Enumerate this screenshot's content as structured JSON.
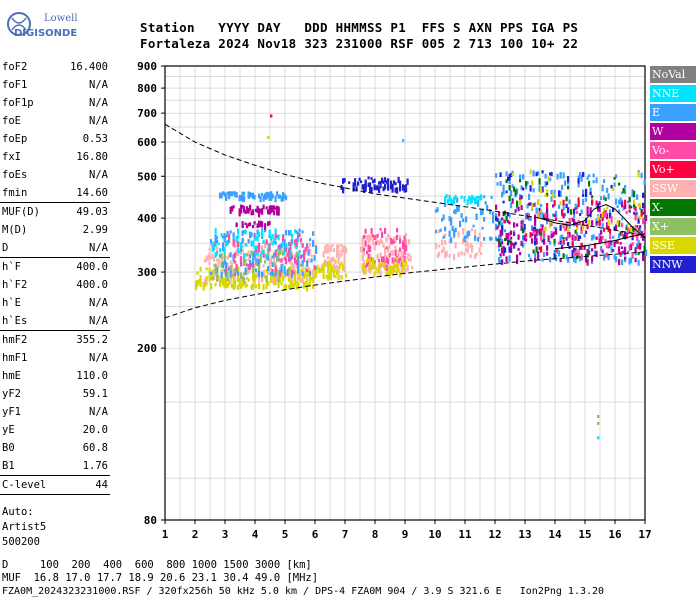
{
  "logo": {
    "line1": "Lowell",
    "line2": "DIGISONDE"
  },
  "header": {
    "labels": "Station   YYYY DAY   DDD HHMMSS P1  FFS S AXN PPS IGA PS",
    "values": "Fortaleza 2024 Nov18 323 231000 RSF 005 2 713 100 10+ 22"
  },
  "params": [
    [
      {
        "label": "foF2",
        "value": "16.400"
      },
      {
        "label": "foF1",
        "value": "N/A"
      },
      {
        "label": "foF1p",
        "value": "N/A"
      },
      {
        "label": "foE",
        "value": "N/A"
      },
      {
        "label": "foEp",
        "value": "0.53"
      },
      {
        "label": "fxI",
        "value": "16.80"
      },
      {
        "label": "foEs",
        "value": "N/A"
      },
      {
        "label": "fmin",
        "value": "14.60"
      }
    ],
    [
      {
        "label": "MUF(D)",
        "value": "49.03"
      },
      {
        "label": "M(D)",
        "value": "2.99"
      },
      {
        "label": "D",
        "value": "N/A"
      }
    ],
    [
      {
        "label": "h`F",
        "value": "400.0"
      },
      {
        "label": "h`F2",
        "value": "400.0"
      },
      {
        "label": "h`E",
        "value": "N/A"
      },
      {
        "label": "h`Es",
        "value": "N/A"
      }
    ],
    [
      {
        "label": "hmF2",
        "value": "355.2"
      },
      {
        "label": "hmF1",
        "value": "N/A"
      },
      {
        "label": "hmE",
        "value": "110.0"
      },
      {
        "label": "yF2",
        "value": "59.1"
      },
      {
        "label": "yF1",
        "value": "N/A"
      },
      {
        "label": "yE",
        "value": "20.0"
      },
      {
        "label": "B0",
        "value": "60.8"
      },
      {
        "label": "B1",
        "value": "1.76"
      }
    ],
    [
      {
        "label": "C-level",
        "value": "44"
      }
    ]
  ],
  "autoscaling": [
    "Auto:",
    "Artist5",
    "500200"
  ],
  "footer": {
    "d_row": "D     100  200  400  600  800 1000 1500 3000 [km]",
    "muf_row": "MUF  16.8 17.0 17.7 18.9 20.6 23.1 30.4 49.0 [MHz]",
    "file_row": "FZA0M_2024323231000.RSF / 320fx256h 50 kHz 5.0 km / DPS-4 FZA0M 904 / 3.9 S 321.6 E   Ion2Png 1.3.20"
  },
  "legend": [
    {
      "label": "NoVal",
      "color": "#808080"
    },
    {
      "label": "NNE",
      "color": "#00e5ff"
    },
    {
      "label": "E",
      "color": "#3aa0ff"
    },
    {
      "label": "W",
      "color": "#b000a0"
    },
    {
      "label": "Vo-",
      "color": "#ff4aa8"
    },
    {
      "label": "Vo+",
      "color": "#ff0040"
    },
    {
      "label": "SSW",
      "color": "#ffb0b0"
    },
    {
      "label": "X-",
      "color": "#007800"
    },
    {
      "label": "X+",
      "color": "#8cc060"
    },
    {
      "label": "SSE",
      "color": "#d8d800"
    },
    {
      "label": "NNW",
      "color": "#2020d0"
    }
  ],
  "chart_data": {
    "type": "scatter",
    "xlim": [
      1,
      17
    ],
    "ylim": [
      80,
      900
    ],
    "y_scale": "log",
    "x_ticks": [
      1,
      2,
      3,
      4,
      5,
      6,
      7,
      8,
      9,
      10,
      11,
      12,
      13,
      14,
      15,
      16,
      17
    ],
    "y_ticks": [
      80,
      200,
      300,
      400,
      500,
      600,
      700,
      800,
      900
    ],
    "grid": true,
    "legend_position": "right",
    "clusters": [
      {
        "series": "SSE",
        "x": [
          2.0,
          6.0
        ],
        "y": [
          280,
          310
        ],
        "n": 220
      },
      {
        "series": "SSW",
        "x": [
          2.3,
          6.0
        ],
        "y": [
          290,
          360
        ],
        "n": 180
      },
      {
        "series": "E",
        "x": [
          2.5,
          6.0
        ],
        "y": [
          300,
          380
        ],
        "n": 160
      },
      {
        "series": "NNE",
        "x": [
          2.5,
          5.5
        ],
        "y": [
          330,
          380
        ],
        "n": 70
      },
      {
        "series": "Vo-",
        "x": [
          3.0,
          6.0
        ],
        "y": [
          300,
          370
        ],
        "n": 60
      },
      {
        "series": "X+",
        "x": [
          2.5,
          5.5
        ],
        "y": [
          290,
          340
        ],
        "n": 40
      },
      {
        "series": "E",
        "x": [
          2.8,
          5.0
        ],
        "y": [
          450,
          462
        ],
        "n": 70
      },
      {
        "series": "W",
        "x": [
          3.0,
          4.8
        ],
        "y": [
          415,
          430
        ],
        "n": 55
      },
      {
        "series": "W",
        "x": [
          3.2,
          4.5
        ],
        "y": [
          385,
          395
        ],
        "n": 20
      },
      {
        "series": "SSW",
        "x": [
          6.2,
          7.0
        ],
        "y": [
          305,
          350
        ],
        "n": 60
      },
      {
        "series": "SSE",
        "x": [
          6.0,
          7.0
        ],
        "y": [
          295,
          320
        ],
        "n": 40
      },
      {
        "series": "SSW",
        "x": [
          7.5,
          9.2
        ],
        "y": [
          300,
          370
        ],
        "n": 130
      },
      {
        "series": "Vo-",
        "x": [
          7.5,
          9.0
        ],
        "y": [
          310,
          380
        ],
        "n": 60
      },
      {
        "series": "SSE",
        "x": [
          7.5,
          9.0
        ],
        "y": [
          300,
          325
        ],
        "n": 40
      },
      {
        "series": "NNW",
        "x": [
          6.8,
          9.1
        ],
        "y": [
          470,
          500
        ],
        "n": 70
      },
      {
        "series": "SSW",
        "x": [
          10.0,
          11.5
        ],
        "y": [
          330,
          380
        ],
        "n": 50
      },
      {
        "series": "E",
        "x": [
          10.0,
          12.0
        ],
        "y": [
          360,
          460
        ],
        "n": 60
      },
      {
        "series": "NNE",
        "x": [
          10.3,
          11.5
        ],
        "y": [
          440,
          455
        ],
        "n": 30
      },
      {
        "series": "E",
        "x": [
          12.0,
          17.0
        ],
        "y": [
          320,
          520
        ],
        "n": 240
      },
      {
        "series": "W",
        "x": [
          12.0,
          17.0
        ],
        "y": [
          320,
          440
        ],
        "n": 160
      },
      {
        "series": "NNW",
        "x": [
          12.0,
          17.0
        ],
        "y": [
          330,
          520
        ],
        "n": 80
      },
      {
        "series": "Vo+",
        "x": [
          12.0,
          17.0
        ],
        "y": [
          330,
          450
        ],
        "n": 50
      },
      {
        "series": "X-",
        "x": [
          12.0,
          17.0
        ],
        "y": [
          330,
          500
        ],
        "n": 50
      },
      {
        "series": "SSE",
        "x": [
          12.5,
          17.0
        ],
        "y": [
          380,
          520
        ],
        "n": 40
      },
      {
        "series": "Vo-",
        "x": [
          13.0,
          17.0
        ],
        "y": [
          330,
          420
        ],
        "n": 50
      }
    ],
    "points": [
      {
        "series": "Vo+",
        "x": 4.5,
        "y": 695
      },
      {
        "series": "SSE",
        "x": 4.4,
        "y": 620
      },
      {
        "series": "NNE",
        "x": 8.9,
        "y": 610
      },
      {
        "series": "X+",
        "x": 15.4,
        "y": 140
      },
      {
        "series": "X+",
        "x": 15.4,
        "y": 135
      },
      {
        "series": "NNE",
        "x": 15.4,
        "y": 125
      }
    ],
    "upper_curve": [
      [
        1,
        660
      ],
      [
        2,
        600
      ],
      [
        3,
        560
      ],
      [
        4,
        530
      ],
      [
        5,
        505
      ],
      [
        6,
        485
      ],
      [
        7,
        470
      ],
      [
        8,
        455
      ],
      [
        9,
        445
      ],
      [
        10,
        435
      ],
      [
        11,
        425
      ],
      [
        12,
        415
      ],
      [
        13,
        405
      ],
      [
        14,
        395
      ],
      [
        15,
        385
      ],
      [
        16,
        375
      ],
      [
        17,
        365
      ]
    ],
    "lower_curve": [
      [
        1,
        235
      ],
      [
        2,
        248
      ],
      [
        3,
        258
      ],
      [
        4,
        266
      ],
      [
        5,
        273
      ],
      [
        6,
        280
      ],
      [
        7,
        286
      ],
      [
        8,
        292
      ],
      [
        9,
        298
      ],
      [
        10,
        303
      ],
      [
        11,
        308
      ],
      [
        12,
        313
      ],
      [
        13,
        318
      ],
      [
        14,
        322
      ],
      [
        15,
        326
      ],
      [
        16,
        330
      ],
      [
        17,
        334
      ]
    ],
    "profile": [
      [
        13.5,
        400
      ],
      [
        14.0,
        390
      ],
      [
        14.5,
        385
      ],
      [
        15.0,
        395
      ],
      [
        15.3,
        420
      ],
      [
        15.7,
        430
      ],
      [
        16.0,
        420
      ],
      [
        16.3,
        400
      ],
      [
        16.6,
        380
      ],
      [
        17.0,
        360
      ]
    ],
    "profile2": [
      [
        14.0,
        340
      ],
      [
        15.0,
        345
      ],
      [
        15.5,
        350
      ],
      [
        16.0,
        355
      ],
      [
        16.5,
        362
      ],
      [
        17.0,
        368
      ]
    ]
  }
}
